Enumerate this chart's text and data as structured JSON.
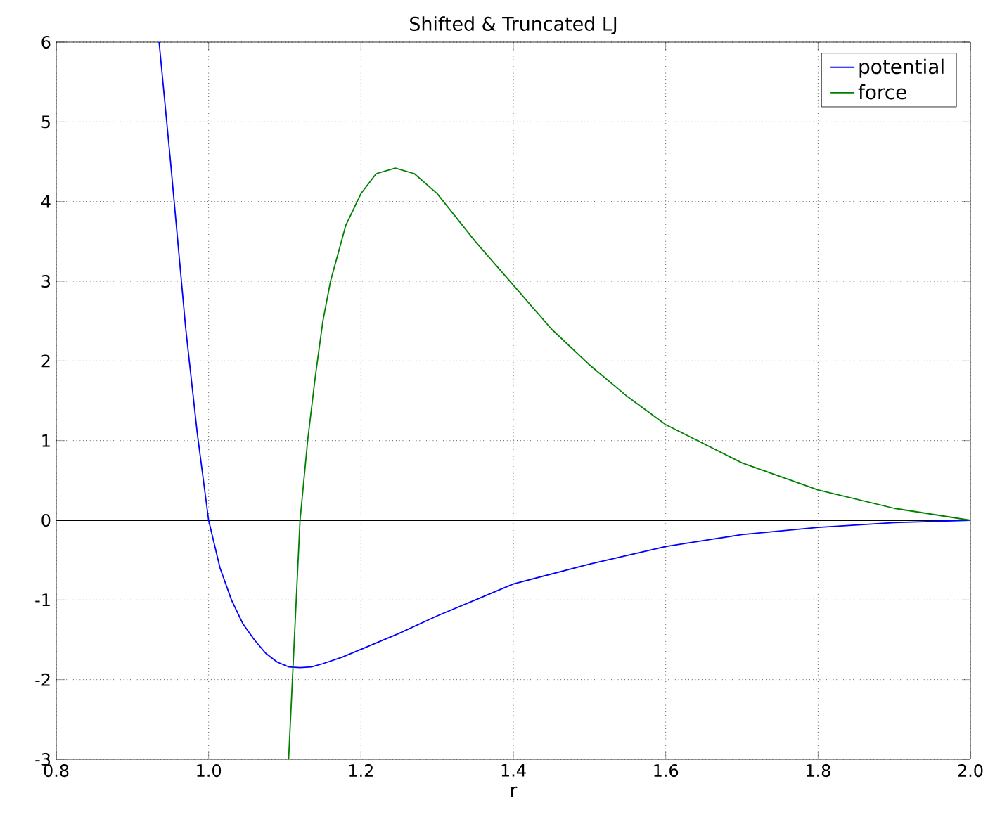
{
  "chart_data": {
    "type": "line",
    "title": "Shifted & Truncated LJ",
    "xlabel": "r",
    "xlim": [
      0.8,
      2.0
    ],
    "ylim": [
      -3,
      6
    ],
    "xticks": [
      0.8,
      {
        "value": 1,
        "label": "1.0"
      },
      1.2,
      1.4,
      1.6,
      1.8,
      {
        "value": 2,
        "label": "2.0"
      }
    ],
    "yticks": [
      -3,
      -2,
      -1,
      0,
      1,
      2,
      3,
      4,
      5,
      6
    ],
    "grid": true,
    "legend": "top right",
    "marker": "none",
    "line_style": "solid",
    "ref_lines": [
      {
        "axis": "y",
        "value": 0,
        "color": "#000000"
      }
    ],
    "series": [
      {
        "name": "potential",
        "color": "#0000ff",
        "x": [
          0.935,
          0.95,
          0.97,
          0.985,
          1.0,
          1.015,
          1.03,
          1.045,
          1.06,
          1.075,
          1.09,
          1.105,
          1.12,
          1.135,
          1.15,
          1.175,
          1.2,
          1.25,
          1.3,
          1.35,
          1.4,
          1.5,
          1.6,
          1.7,
          1.8,
          1.9,
          2.0
        ],
        "values": [
          6,
          4.5,
          2.4,
          1.1,
          0,
          -0.6,
          -1.0,
          -1.3,
          -1.5,
          -1.67,
          -1.78,
          -1.84,
          -1.85,
          -1.84,
          -1.8,
          -1.72,
          -1.62,
          -1.42,
          -1.2,
          -1.0,
          -0.8,
          -0.55,
          -0.33,
          -0.18,
          -0.09,
          -0.03,
          0
        ]
      },
      {
        "name": "force",
        "color": "#008000",
        "x": [
          1.105,
          1.11,
          1.115,
          1.12,
          1.13,
          1.14,
          1.15,
          1.16,
          1.18,
          1.2,
          1.22,
          1.245,
          1.27,
          1.3,
          1.35,
          1.4,
          1.45,
          1.5,
          1.55,
          1.6,
          1.7,
          1.8,
          1.9,
          2.0
        ],
        "values": [
          -3,
          -2.0,
          -1.0,
          0,
          1.0,
          1.8,
          2.5,
          3.0,
          3.7,
          4.1,
          4.35,
          4.42,
          4.35,
          4.1,
          3.5,
          2.95,
          2.4,
          1.95,
          1.55,
          1.2,
          0.72,
          0.38,
          0.15,
          0
        ]
      }
    ]
  }
}
